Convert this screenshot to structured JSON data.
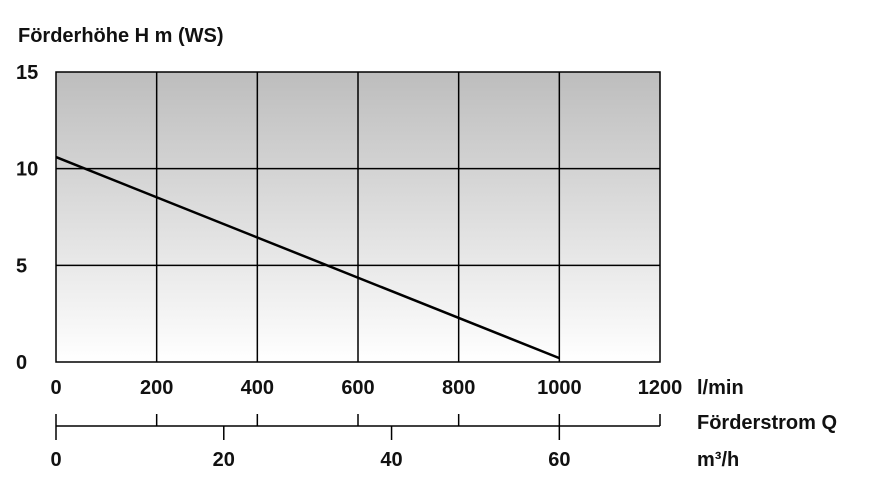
{
  "chart_data": {
    "type": "line",
    "ylabel": "Förderhöhe H m (WS)",
    "y_ticks": [
      "0",
      "5",
      "10",
      "15"
    ],
    "ylim": [
      0,
      15
    ],
    "x_ticks": [
      "0",
      "200",
      "400",
      "600",
      "800",
      "1000",
      "1200"
    ],
    "xlim": [
      0,
      1200
    ],
    "xunit": "l/min",
    "x2_label": "Förderstrom Q",
    "x2_ticks": [
      "0",
      "20",
      "40",
      "60"
    ],
    "x2_tick_values_lmin": [
      0,
      333.33,
      666.67,
      1000
    ],
    "x2_unit": "m³/h",
    "grid": true,
    "series": [
      {
        "x": [
          0,
          1000
        ],
        "y": [
          10.6,
          0.2
        ]
      }
    ],
    "colors": {
      "plot_top": "#bdbdbd",
      "plot_bottom": "#ffffff",
      "line": "#000000",
      "grid": "#000000"
    }
  }
}
